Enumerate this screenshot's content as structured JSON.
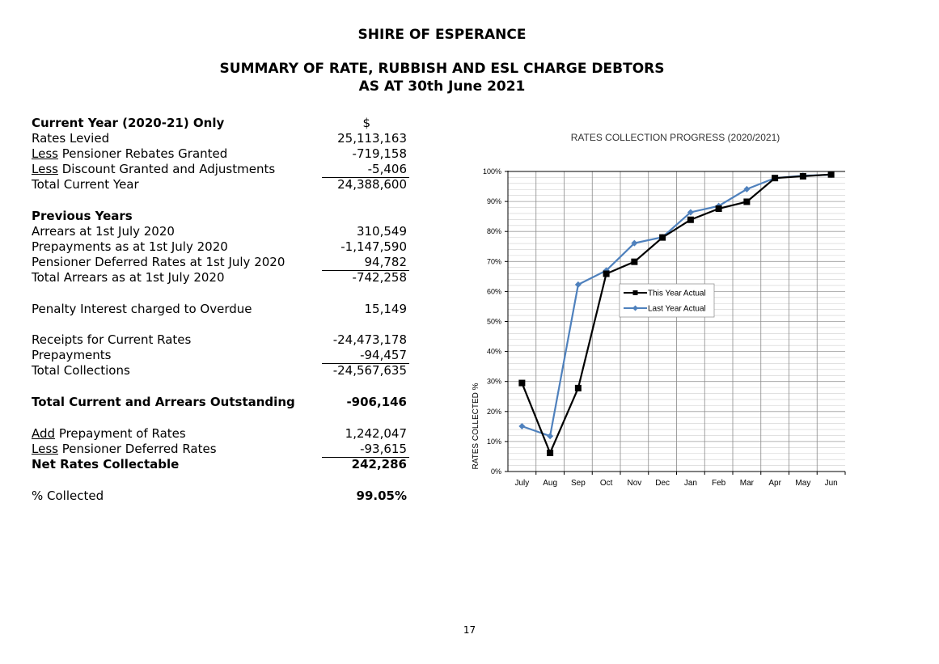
{
  "header": {
    "org": "SHIRE OF ESPERANCE",
    "subtitle1": "SUMMARY OF RATE, RUBBISH AND ESL CHARGE DEBTORS",
    "subtitle2": "AS AT 30th June 2021"
  },
  "summary": {
    "current_year": {
      "heading": "Current Year (2020-21) Only",
      "currency": "$",
      "rates_levied": {
        "label": "Rates Levied",
        "value": "25,113,163"
      },
      "pensioner_rebates": {
        "prefix": "Less",
        "label": " Pensioner Rebates Granted",
        "value": "-719,158"
      },
      "discount": {
        "prefix": "Less",
        "label": " Discount Granted and Adjustments",
        "value": "-5,406"
      },
      "total": {
        "label": "Total Current Year",
        "value": "24,388,600"
      }
    },
    "previous_years": {
      "heading": "Previous Years",
      "arrears": {
        "label": "Arrears at 1st July 2020",
        "value": "310,549"
      },
      "prepayments": {
        "label": "Prepayments as at 1st July 2020",
        "value": "-1,147,590"
      },
      "pensioner_deferred": {
        "label": "Pensioner Deferred Rates at 1st July 2020",
        "value": "94,782"
      },
      "total": {
        "label": "Total Arrears as at 1st July 2020",
        "value": "-742,258"
      }
    },
    "penalty": {
      "label": "Penalty Interest charged to Overdue",
      "value": "15,149"
    },
    "collections": {
      "receipts": {
        "label": "Receipts for Current Rates",
        "value": "-24,473,178"
      },
      "prepayments": {
        "label": "Prepayments",
        "value": "-94,457"
      },
      "total": {
        "label": "Total Collections",
        "value": "-24,567,635"
      }
    },
    "outstanding": {
      "label": "Total Current and Arrears Outstanding",
      "value": "-906,146"
    },
    "net": {
      "add_prepayment": {
        "prefix": "Add",
        "label": " Prepayment of Rates",
        "value": "1,242,047"
      },
      "less_deferred": {
        "prefix": "Less",
        "label": " Pensioner Deferred Rates",
        "value": "-93,615"
      },
      "collectable": {
        "label": "Net Rates Collectable",
        "value": "242,286"
      }
    },
    "collected": {
      "label": "% Collected",
      "value": "99.05%"
    }
  },
  "page_number": "17",
  "chart_data": {
    "type": "line",
    "title": "RATES COLLECTION PROGRESS (2020/2021)",
    "ylabel": "RATES COLLECTED %",
    "xlabel": "",
    "categories": [
      "July",
      "Aug",
      "Sep",
      "Oct",
      "Nov",
      "Dec",
      "Jan",
      "Feb",
      "Mar",
      "Apr",
      "May",
      "Jun"
    ],
    "ylim": [
      0,
      100
    ],
    "yticks": [
      "0%",
      "10%",
      "20%",
      "30%",
      "40%",
      "50%",
      "60%",
      "70%",
      "80%",
      "90%",
      "100%"
    ],
    "grid": true,
    "legend_position": "right-middle",
    "series": [
      {
        "name": "This Year Actual",
        "color": "#000000",
        "marker": "square",
        "values": [
          29.5,
          6.2,
          27.8,
          65.9,
          69.9,
          78.0,
          83.9,
          87.6,
          89.9,
          97.8,
          98.4,
          99.0
        ]
      },
      {
        "name": "Last Year Actual",
        "color": "#4f81bd",
        "marker": "diamond",
        "values": [
          15.1,
          11.8,
          62.3,
          67.0,
          76.1,
          78.1,
          86.4,
          88.5,
          94.1,
          97.8,
          98.6,
          98.9
        ]
      }
    ]
  }
}
